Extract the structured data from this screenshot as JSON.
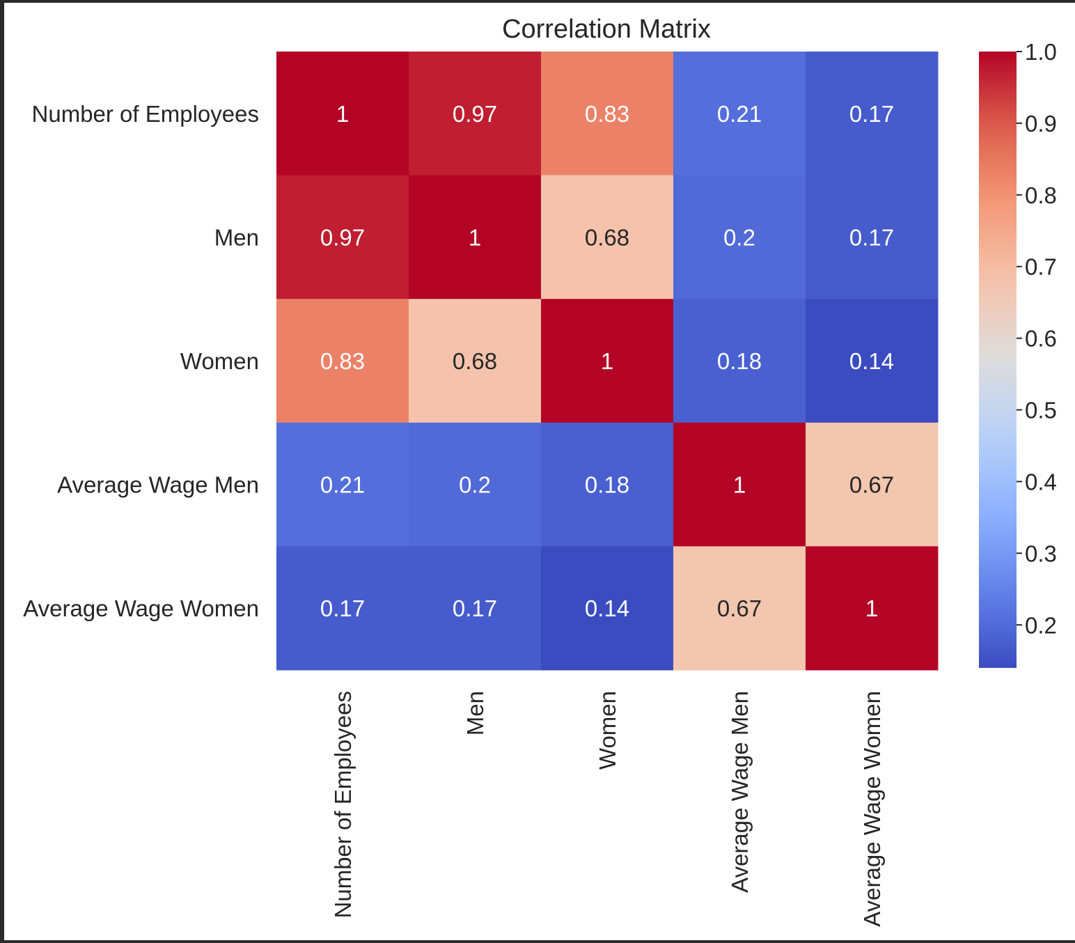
{
  "chart_data": {
    "type": "heatmap",
    "title": "Correlation Matrix",
    "row_labels": [
      "Number of Employees",
      "Men",
      "Women",
      "Average Wage Men",
      "Average Wage Women"
    ],
    "col_labels": [
      "Number of Employees",
      "Men",
      "Women",
      "Average Wage Men",
      "Average Wage Women"
    ],
    "values": [
      [
        1,
        0.97,
        0.83,
        0.21,
        0.17
      ],
      [
        0.97,
        1,
        0.68,
        0.2,
        0.17
      ],
      [
        0.83,
        0.68,
        1,
        0.18,
        0.14
      ],
      [
        0.21,
        0.2,
        0.18,
        1,
        0.67
      ],
      [
        0.17,
        0.17,
        0.14,
        0.67,
        1
      ]
    ],
    "annotations": [
      [
        "1",
        "0.97",
        "0.83",
        "0.21",
        "0.17"
      ],
      [
        "0.97",
        "1",
        "0.68",
        "0.2",
        "0.17"
      ],
      [
        "0.83",
        "0.68",
        "1",
        "0.18",
        "0.14"
      ],
      [
        "0.21",
        "0.2",
        "0.18",
        "1",
        "0.67"
      ],
      [
        "0.17",
        "0.17",
        "0.14",
        "0.67",
        "1"
      ]
    ],
    "colormap": "coolwarm",
    "colorbar": {
      "range": [
        0.14,
        1.0
      ],
      "ticks": [
        0.2,
        0.3,
        0.4,
        0.5,
        0.6,
        0.7,
        0.8,
        0.9,
        1.0
      ],
      "tick_labels": [
        "0.2",
        "0.3",
        "0.4",
        "0.5",
        "0.6",
        "0.7",
        "0.8",
        "0.9",
        "1.0"
      ],
      "position": "right"
    },
    "x_tick_rotation": "vertical",
    "grid": false
  }
}
